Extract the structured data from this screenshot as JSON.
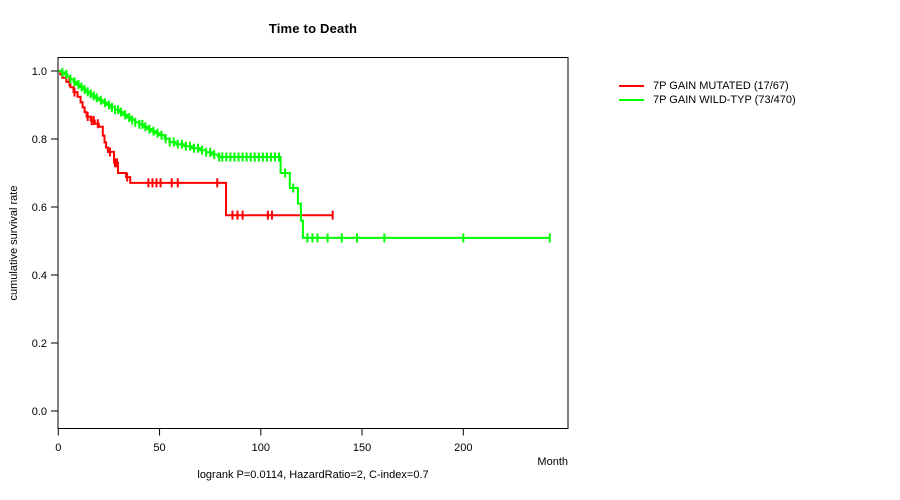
{
  "title": "Time to Death",
  "legend": {
    "items": [
      {
        "label": "7P GAIN MUTATED (17/67)",
        "color": "#ff0000"
      },
      {
        "label": "7P GAIN WILD-TYP (73/470)",
        "color": "#00ff00"
      }
    ]
  },
  "footer": {
    "annotation": "logrank P=0.0114, HazardRatio=2, C-index=0.7"
  },
  "chart_data": {
    "type": "line",
    "subtype": "kaplan-meier-step",
    "title": "Time to Death",
    "xlabel": "Month",
    "ylabel": "cumulative survival rate",
    "xlim": [
      0,
      251
    ],
    "ylim": [
      0,
      1
    ],
    "x_ticks": [
      0,
      50,
      100,
      150,
      200
    ],
    "y_ticks": [
      0.0,
      0.2,
      0.4,
      0.6,
      0.8,
      1.0
    ],
    "grid": false,
    "legend_position": "right-outside",
    "axis_color": "#000000",
    "series": [
      {
        "name": "7P GAIN MUTATED (17/67)",
        "color": "#ff0000",
        "steps": [
          [
            0,
            1.0
          ],
          [
            1,
            0.99
          ],
          [
            2,
            0.98
          ],
          [
            4,
            0.968
          ],
          [
            6,
            0.952
          ],
          [
            7.5,
            0.938
          ],
          [
            9.5,
            0.924
          ],
          [
            11,
            0.908
          ],
          [
            12,
            0.893
          ],
          [
            13,
            0.879
          ],
          [
            14,
            0.866
          ],
          [
            16,
            0.854
          ],
          [
            18,
            0.845
          ],
          [
            20,
            0.836
          ],
          [
            22,
            0.81
          ],
          [
            22.8,
            0.79
          ],
          [
            23.6,
            0.775
          ],
          [
            24.5,
            0.762
          ],
          [
            27.5,
            0.73
          ],
          [
            29.5,
            0.7
          ],
          [
            33.5,
            0.688
          ],
          [
            35.5,
            0.671
          ],
          [
            82.8,
            0.576
          ]
        ],
        "end_month": 135.5,
        "censor_months": [
          5.5,
          8,
          14.5,
          16.5,
          17.5,
          19.5,
          25.5,
          28,
          29,
          34,
          44.5,
          46.5,
          48.5,
          50.5,
          56,
          59,
          78.5,
          86,
          88.5,
          91,
          103.5,
          105.5,
          135.5
        ]
      },
      {
        "name": "7P GAIN WILD-TYP (73/470)",
        "color": "#00ff00",
        "steps": [
          [
            0,
            1.0
          ],
          [
            1.5,
            0.996
          ],
          [
            3,
            0.99
          ],
          [
            4.5,
            0.983
          ],
          [
            6,
            0.976
          ],
          [
            7.5,
            0.968
          ],
          [
            9,
            0.96
          ],
          [
            10.5,
            0.953
          ],
          [
            12,
            0.946
          ],
          [
            13.5,
            0.939
          ],
          [
            15,
            0.933
          ],
          [
            16.5,
            0.927
          ],
          [
            18,
            0.921
          ],
          [
            20,
            0.914
          ],
          [
            22,
            0.907
          ],
          [
            24,
            0.9
          ],
          [
            26,
            0.893
          ],
          [
            28,
            0.886
          ],
          [
            30,
            0.879
          ],
          [
            32,
            0.871
          ],
          [
            34,
            0.863
          ],
          [
            36,
            0.856
          ],
          [
            38,
            0.849
          ],
          [
            40,
            0.843
          ],
          [
            42,
            0.836
          ],
          [
            44,
            0.829
          ],
          [
            46,
            0.823
          ],
          [
            48,
            0.817
          ],
          [
            50,
            0.811
          ],
          [
            52.5,
            0.801
          ],
          [
            55,
            0.791
          ],
          [
            58,
            0.785
          ],
          [
            62,
            0.779
          ],
          [
            66,
            0.773
          ],
          [
            70,
            0.767
          ],
          [
            73,
            0.761
          ],
          [
            76,
            0.754
          ],
          [
            79,
            0.747
          ],
          [
            109.8,
            0.7
          ],
          [
            114.3,
            0.656
          ],
          [
            118.3,
            0.61
          ],
          [
            119.8,
            0.56
          ],
          [
            120.8,
            0.509
          ]
        ],
        "end_month": 242.7,
        "censor_months": [
          2,
          4,
          6,
          8,
          10,
          11.5,
          13,
          14.5,
          16,
          17.5,
          19,
          21,
          23,
          25,
          26.5,
          28,
          29.5,
          31,
          33,
          35,
          36.5,
          38,
          40,
          41.5,
          43,
          45,
          47,
          49,
          51,
          53,
          55,
          57,
          59,
          61,
          63,
          65,
          67,
          69,
          71,
          73,
          75,
          77,
          79.5,
          81,
          83,
          85,
          87,
          89,
          91,
          93,
          95,
          97,
          99,
          101,
          103,
          105,
          107,
          109,
          112,
          116,
          123,
          125.5,
          128,
          133,
          140,
          147.5,
          161,
          200,
          242.7
        ]
      }
    ]
  }
}
